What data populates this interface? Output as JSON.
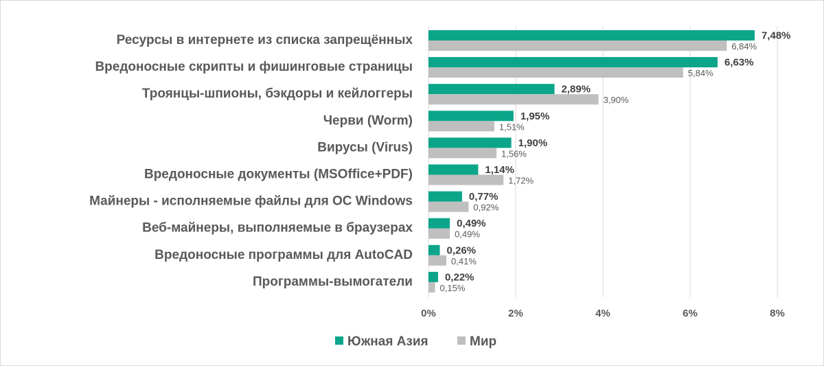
{
  "chart_data": {
    "type": "bar",
    "orientation": "horizontal",
    "categories": [
      "Ресурсы в интернете из списка запрещённых",
      "Вредоносные скрипты и фишинговые страницы",
      "Троянцы-шпионы, бэкдоры и кейлоггеры",
      "Черви (Worm)",
      "Вирусы (Virus)",
      "Вредоносные документы (MSOffice+PDF)",
      "Майнеры - исполняемые файлы для ОС Windows",
      "Веб-майнеры, выполняемые в браузерах",
      "Вредоносные программы для AutoCAD",
      "Программы-вымогатели"
    ],
    "series": [
      {
        "name": "Южная Азия",
        "color": "#0BA58A",
        "values": [
          7.48,
          6.63,
          2.89,
          1.95,
          1.9,
          1.14,
          0.77,
          0.49,
          0.26,
          0.22
        ],
        "labels": [
          "7,48%",
          "6,63%",
          "2,89%",
          "1,95%",
          "1,90%",
          "1,14%",
          "0,77%",
          "0,49%",
          "0,26%",
          "0,22%"
        ]
      },
      {
        "name": "Мир",
        "color": "#BFBFBF",
        "values": [
          6.84,
          5.84,
          3.9,
          1.51,
          1.56,
          1.72,
          0.92,
          0.49,
          0.41,
          0.15
        ],
        "labels": [
          "6,84%",
          "5,84%",
          "3,90%",
          "1,51%",
          "1,56%",
          "1,72%",
          "0,92%",
          "0,49%",
          "0,41%",
          "0,15%"
        ]
      }
    ],
    "xlim": [
      0,
      8
    ],
    "xticks": [
      0,
      2,
      4,
      6,
      8
    ],
    "xtick_labels": [
      "0%",
      "2%",
      "4%",
      "6%",
      "8%"
    ],
    "title": "",
    "xlabel": "",
    "ylabel": "",
    "grid": "vertical",
    "gridline_color": "#D9D9D9",
    "legend_position": "bottom"
  }
}
